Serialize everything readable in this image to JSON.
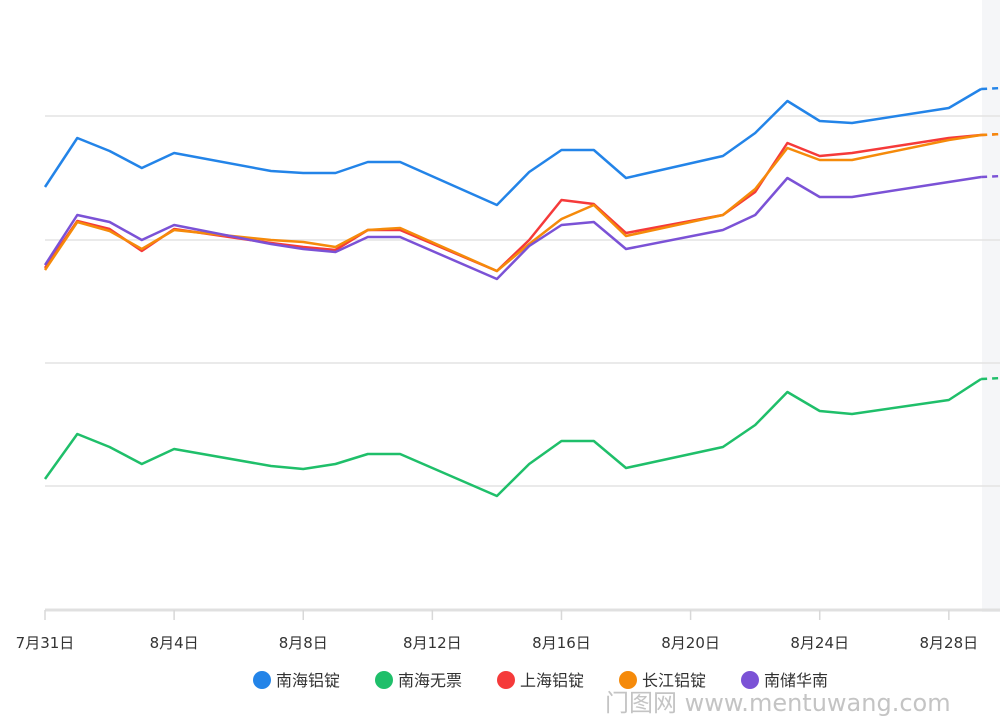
{
  "chart_data": {
    "type": "line",
    "title": "",
    "xlabel": "",
    "ylabel": "",
    "y_unit_note": "no y tick labels shown; relative units",
    "ylim": [
      0,
      610
    ],
    "gridlines": [
      124,
      247,
      370,
      494
    ],
    "x_days": [
      0,
      1,
      2,
      3,
      4,
      7,
      8,
      9,
      10,
      11,
      14,
      15,
      16,
      17,
      18,
      21,
      22,
      23,
      24,
      25,
      28,
      29
    ],
    "x_range_days": [
      0,
      29.6
    ],
    "tick_days": [
      0,
      4,
      8,
      12,
      16,
      20,
      24,
      28
    ],
    "tick_labels": [
      "7月31日",
      "8月4日",
      "8月8日",
      "8月12日",
      "8月16日",
      "8月20日",
      "8月24日",
      "8月28日"
    ],
    "legend_position": "bottom-center",
    "series": [
      {
        "name": "南海铝锭",
        "color": "#2384e8",
        "values": [
          423,
          472,
          459,
          442,
          457,
          439,
          437,
          437,
          448,
          448,
          405,
          438,
          460,
          460,
          432,
          454,
          477,
          509,
          489,
          487,
          502,
          521
        ]
      },
      {
        "name": "南海无票",
        "color": "#1fbf6a",
        "values": [
          131,
          176,
          163,
          146,
          161,
          144,
          141,
          146,
          156,
          156,
          114,
          146,
          169,
          169,
          142,
          163,
          185,
          218,
          199,
          196,
          210,
          231
        ]
      },
      {
        "name": "上海铝锭",
        "color": "#f53a3a",
        "values": [
          342,
          389,
          381,
          359,
          381,
          367,
          363,
          360,
          380,
          380,
          339,
          370,
          410,
          406,
          377,
          395,
          418,
          467,
          454,
          457,
          472,
          475
        ]
      },
      {
        "name": "长江铝锭",
        "color": "#f58a0a",
        "values": [
          340,
          388,
          379,
          361,
          380,
          370,
          368,
          363,
          380,
          382,
          339,
          366,
          391,
          405,
          374,
          395,
          421,
          462,
          450,
          450,
          470,
          475
        ]
      },
      {
        "name": "南储华南",
        "color": "#7b52d6",
        "values": [
          345,
          395,
          388,
          370,
          385,
          366,
          361,
          358,
          373,
          373,
          331,
          364,
          385,
          388,
          361,
          380,
          395,
          432,
          413,
          413,
          428,
          433
        ]
      }
    ]
  },
  "watermark": "门图网 www.mentuwang.com"
}
